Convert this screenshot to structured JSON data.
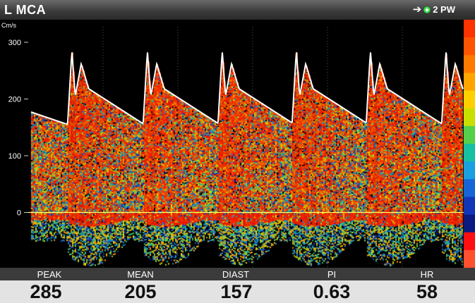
{
  "header": {
    "title": "L MCA",
    "mode_label": "2 PW",
    "arrow_icon": "arrow-right-icon",
    "probe_icon": "probe-indicator-icon"
  },
  "chart_data": {
    "type": "area",
    "title": "",
    "xlabel": "",
    "ylabel": "Cm/s",
    "y_ticks": [
      0,
      100,
      200,
      300
    ],
    "ylim": [
      -130,
      380
    ],
    "grid": true,
    "baseline": 0,
    "envelope": {
      "description_free": true,
      "x": [
        0.0,
        0.1,
        0.16,
        0.3,
        0.35,
        0.45,
        0.5,
        0.6,
        0.7,
        0.85,
        0.9,
        1.0
      ],
      "y": [
        200,
        285,
        200,
        250,
        210,
        200,
        190,
        185,
        180,
        170,
        165,
        157
      ]
    },
    "beats": 6,
    "color_scale": [
      "#ff3300",
      "#ff5500",
      "#ff7a00",
      "#ffa500",
      "#ffd000",
      "#c8e000",
      "#55d04a",
      "#16c0a0",
      "#1aa0e0",
      "#1565d8",
      "#1236b8",
      "#0a1a80",
      "#ff1010",
      "#ff5030"
    ]
  },
  "measurements": {
    "peak": {
      "label": "PEAK",
      "value": "285"
    },
    "mean": {
      "label": "MEAN",
      "value": "205"
    },
    "diast": {
      "label": "DIAST",
      "value": "157"
    },
    "pi": {
      "label": "PI",
      "value": "0.63"
    },
    "hr": {
      "label": "HR",
      "value": "58"
    }
  }
}
